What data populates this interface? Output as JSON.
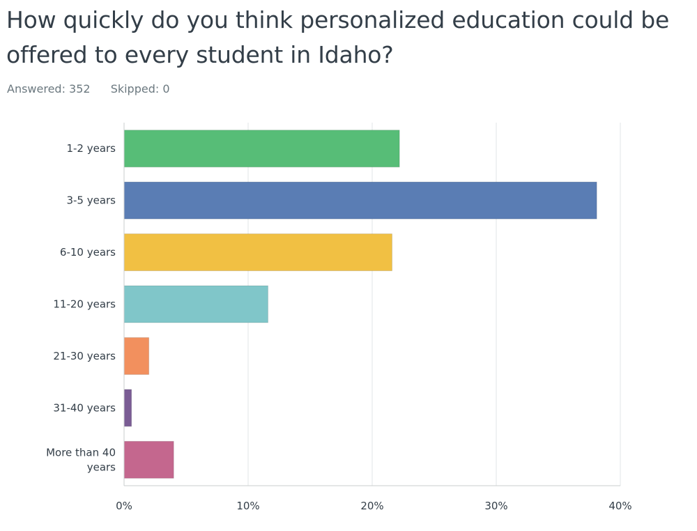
{
  "question": {
    "title": "How quickly do you think personalized education could be offered to every student in Idaho?",
    "answered": "Answered: 352",
    "skipped": "Skipped: 0"
  },
  "chart_data": {
    "type": "bar",
    "orientation": "horizontal",
    "categories": [
      "1-2 years",
      "3-5 years",
      "6-10 years",
      "11-20 years",
      "21-30 years",
      "31-40 years",
      "More than 40 years"
    ],
    "values": [
      22.2,
      38.1,
      21.6,
      11.6,
      2.0,
      0.6,
      4.0
    ],
    "colors": [
      "#57bd77",
      "#5a7db4",
      "#f1c043",
      "#80c6c9",
      "#f2905e",
      "#7a5c94",
      "#c4678e"
    ],
    "xlim": [
      0,
      40
    ],
    "xticks": [
      "0%",
      "10%",
      "20%",
      "30%",
      "40%"
    ],
    "grid": true
  }
}
